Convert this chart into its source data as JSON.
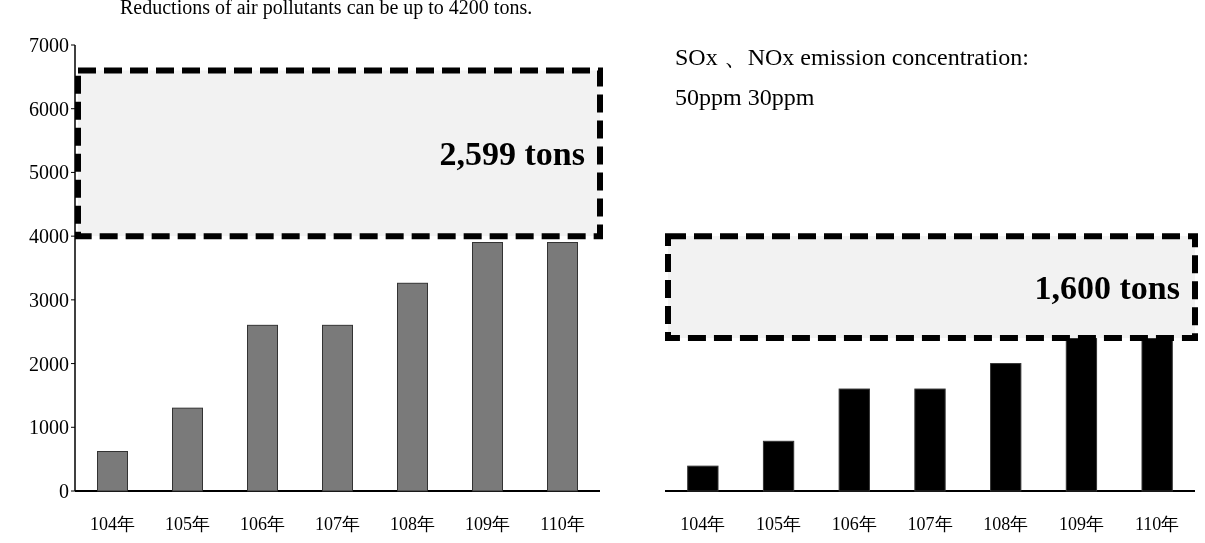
{
  "chart_data": [
    {
      "type": "bar",
      "title": "Reductions of air pollutants can be up to 4200 tons.",
      "categories": [
        "104年",
        "105年",
        "106年",
        "107年",
        "108年",
        "109年",
        "110年"
      ],
      "values": [
        620,
        1300,
        2600,
        2600,
        3260,
        3900,
        3900
      ],
      "color": "#7a7a7a",
      "ylim": [
        0,
        7000
      ],
      "yticks": [
        0,
        1000,
        2000,
        3000,
        4000,
        5000,
        6000,
        7000
      ],
      "bands": [
        {
          "axis": "y",
          "from": 4000,
          "to": 6600,
          "label": "2,599 tons",
          "color": "#f2f2f2"
        }
      ]
    },
    {
      "type": "bar",
      "categories": [
        "104年",
        "105年",
        "106年",
        "107年",
        "108年",
        "109年",
        "110年"
      ],
      "values": [
        390,
        780,
        1600,
        1600,
        2000,
        2400,
        2400
      ],
      "color": "#000000",
      "ylim": [
        0,
        7000
      ],
      "tick_labels": "x",
      "bands": [
        {
          "axis": "y",
          "from": 2400,
          "to": 4000,
          "label": "1,600 tons",
          "color": "#f2f2f2"
        }
      ],
      "annotations": [
        "SOx 、NOx emission concentration:",
        "50ppm    30ppm"
      ]
    }
  ]
}
